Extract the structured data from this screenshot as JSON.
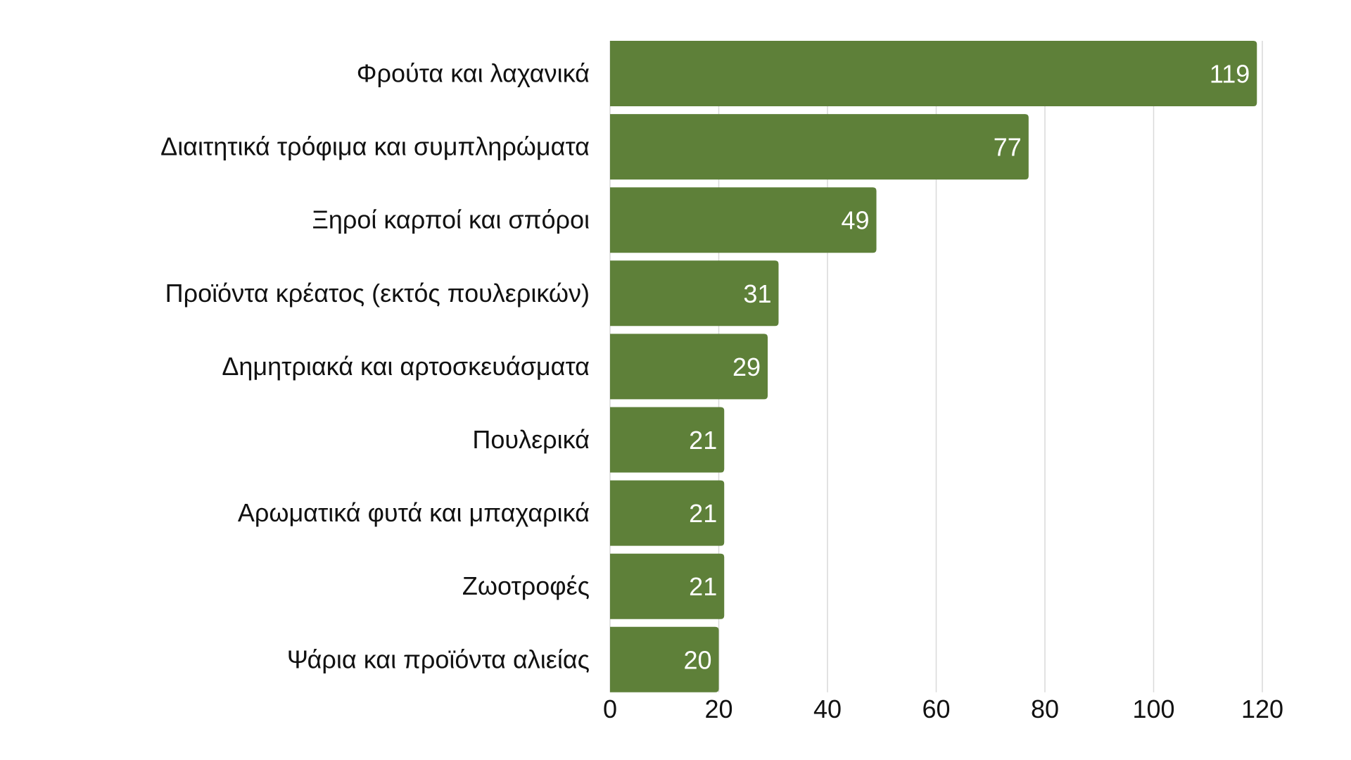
{
  "chart_data": {
    "type": "bar",
    "orientation": "horizontal",
    "categories": [
      "Φρούτα και λαχανικά",
      "Διαιτητικά τρόφιμα και συμπληρώματα",
      "Ξηροί καρποί και σπόροι",
      "Προϊόντα κρέατος (εκτός πουλερικών)",
      "Δημητριακά και αρτοσκευάσματα",
      "Πουλερικά",
      "Αρωματικά φυτά και μπαχαρικά",
      "Ζωοτροφές",
      "Ψάρια και προϊόντα αλιείας"
    ],
    "values": [
      119,
      77,
      49,
      31,
      29,
      21,
      21,
      21,
      20
    ],
    "value_labels": [
      "119",
      "77",
      "49",
      "31",
      "29",
      "21",
      "21",
      "21",
      "20"
    ],
    "xlim": [
      0,
      120
    ],
    "x_ticks": [
      0,
      20,
      40,
      60,
      80,
      100,
      120
    ],
    "x_tick_labels": [
      "0",
      "20",
      "40",
      "60",
      "80",
      "100",
      "120"
    ],
    "grid": true,
    "legend": "none",
    "colors": {
      "bar": "#5e8039",
      "grid": "#d9d9d9",
      "text": "#111111",
      "value_text": "#ffffff"
    }
  }
}
